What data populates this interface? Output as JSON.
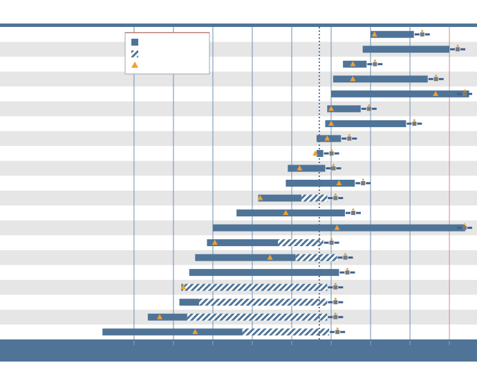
{
  "chart_data": {
    "type": "bar",
    "description_visible_text": [],
    "x_scale": {
      "domain_units": "years",
      "gridlines_present": true
    },
    "colors": {
      "active": "#4f7498",
      "planned_hatch": "#4f7498",
      "milestone": "#f0a030",
      "row_alt": "#e6e6e6",
      "frame": "#4f7498",
      "today_line": "#4f7498"
    },
    "legend": {
      "placement": "top-center",
      "entries": [
        {
          "marker": "solid-bar",
          "label": ""
        },
        {
          "marker": "hatched-bar",
          "label": ""
        },
        {
          "marker": "orange-triangle",
          "label": ""
        }
      ]
    },
    "rows": [
      {
        "start": 1.3,
        "solid_end": 2.4,
        "hatch_end": null,
        "milestone": 1.4,
        "spacecraft": "spacecraft-icon"
      },
      {
        "start": 1.1,
        "solid_end": 3.3,
        "hatch_end": null,
        "milestone": null,
        "spacecraft": "spacecraft-icon"
      },
      {
        "start": 0.6,
        "solid_end": 1.2,
        "hatch_end": null,
        "milestone": 0.85,
        "spacecraft": "rover-icon"
      },
      {
        "start": 0.35,
        "solid_end": 2.75,
        "hatch_end": null,
        "milestone": 0.85,
        "spacecraft": "spacecraft-icon"
      },
      {
        "start": 0.3,
        "solid_end": 3.8,
        "hatch_end": null,
        "milestone": 2.95,
        "spacecraft": "spacecraft-icon"
      },
      {
        "start": 0.2,
        "solid_end": 1.05,
        "hatch_end": null,
        "milestone": 0.3,
        "spacecraft": "spacecraft-icon"
      },
      {
        "start": 0.15,
        "solid_end": 2.2,
        "hatch_end": null,
        "milestone": 0.3,
        "spacecraft": "spacecraft-icon"
      },
      {
        "start": -0.07,
        "solid_end": 0.55,
        "hatch_end": null,
        "milestone": 0.2,
        "spacecraft": "spacecraft-icon"
      },
      {
        "start": -0.07,
        "solid_end": 0.1,
        "hatch_end": null,
        "milestone": -0.1,
        "spacecraft": "spacecraft-icon"
      },
      {
        "start": -0.8,
        "solid_end": 0.15,
        "hatch_end": null,
        "milestone": -0.5,
        "spacecraft": "rover-icon"
      },
      {
        "start": -0.85,
        "solid_end": 0.9,
        "hatch_end": null,
        "milestone": 0.5,
        "spacecraft": "spacecraft-icon"
      },
      {
        "start": -1.55,
        "solid_end": -0.45,
        "hatch_end": 0.2,
        "milestone": -1.5,
        "spacecraft": "spacecraft-icon"
      },
      {
        "start": -2.1,
        "solid_end": 0.65,
        "hatch_end": null,
        "milestone": -0.85,
        "spacecraft": "spacecraft-icon"
      },
      {
        "start": -2.7,
        "solid_end": 3.7,
        "hatch_end": null,
        "milestone": 0.45,
        "spacecraft": "rover-icon"
      },
      {
        "start": -2.85,
        "solid_end": -1.05,
        "hatch_end": 0.1,
        "milestone": -2.65,
        "spacecraft": "spacecraft-icon"
      },
      {
        "start": -3.15,
        "solid_end": -0.6,
        "hatch_end": 0.45,
        "milestone": -1.25,
        "spacecraft": "spacecraft-icon"
      },
      {
        "start": -3.3,
        "solid_end": 0.5,
        "hatch_end": null,
        "milestone": null,
        "spacecraft": "spacecraft-icon"
      },
      {
        "start": -3.5,
        "solid_end": -3.45,
        "hatch_end": 0.2,
        "milestone": -3.45,
        "spacecraft": "spacecraft-icon"
      },
      {
        "start": -3.55,
        "solid_end": -3.05,
        "hatch_end": 0.2,
        "milestone": null,
        "spacecraft": "spacecraft-icon"
      },
      {
        "start": -4.35,
        "solid_end": -3.35,
        "hatch_end": 0.2,
        "milestone": -4.05,
        "spacecraft": "spacecraft-icon"
      },
      {
        "start": -5.5,
        "solid_end": -1.95,
        "hatch_end": 0.25,
        "milestone": -3.15,
        "spacecraft": "spacecraft-icon"
      }
    ],
    "today": 0,
    "x_ticks": [
      -4.7,
      -3.7,
      -2.7,
      -1.7,
      -0.7,
      0.3,
      1.3,
      2.3,
      3.3
    ],
    "xlim": [
      -8.1,
      4.0
    ]
  }
}
